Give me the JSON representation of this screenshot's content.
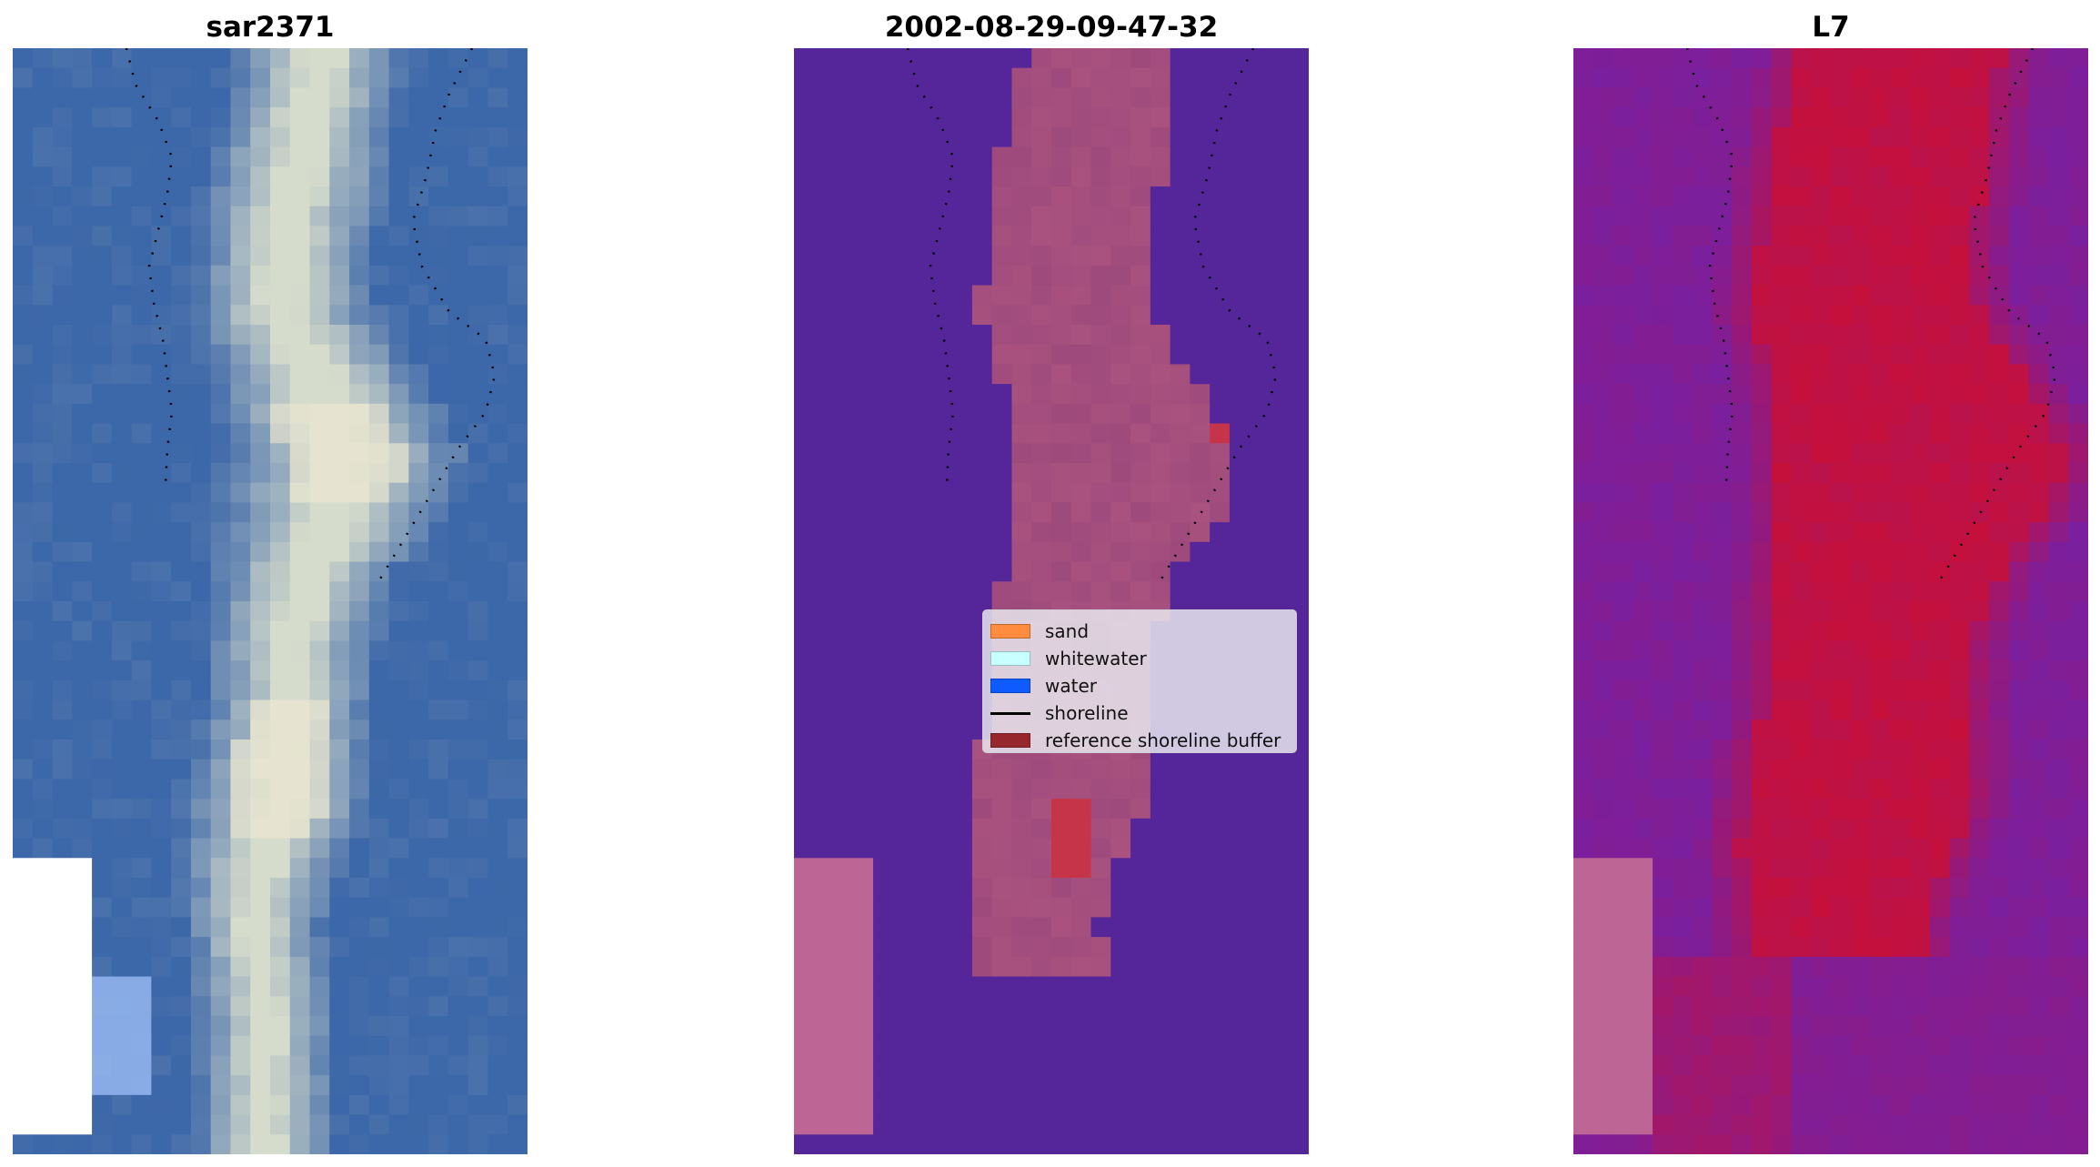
{
  "panels": [
    {
      "title": "sar2371"
    },
    {
      "title": "2002-08-29-09-47-32"
    },
    {
      "title": "L7"
    }
  ],
  "legend": {
    "entries": [
      {
        "label": "sand",
        "kind": "patch",
        "color": "#ff8c3f"
      },
      {
        "label": "whitewater",
        "kind": "patch",
        "color": "#c8ffff"
      },
      {
        "label": "water",
        "kind": "patch",
        "color": "#0e5bff"
      },
      {
        "label": "shoreline",
        "kind": "line",
        "color": "#000000"
      },
      {
        "label": "reference shoreline buffer",
        "kind": "patch",
        "color": "#96282d"
      }
    ]
  },
  "colors": {
    "ocean_blue": "#3c67a8",
    "land_pale": "#d6dccc",
    "sand_bright": "#f1ead2",
    "class_water": "#55259a",
    "class_sand": "#a9527f",
    "class_buffer": "#c6344a",
    "index_water": "#7a1f9e",
    "index_land": "#c5103c",
    "nodata_pink": "#bd6594"
  }
}
